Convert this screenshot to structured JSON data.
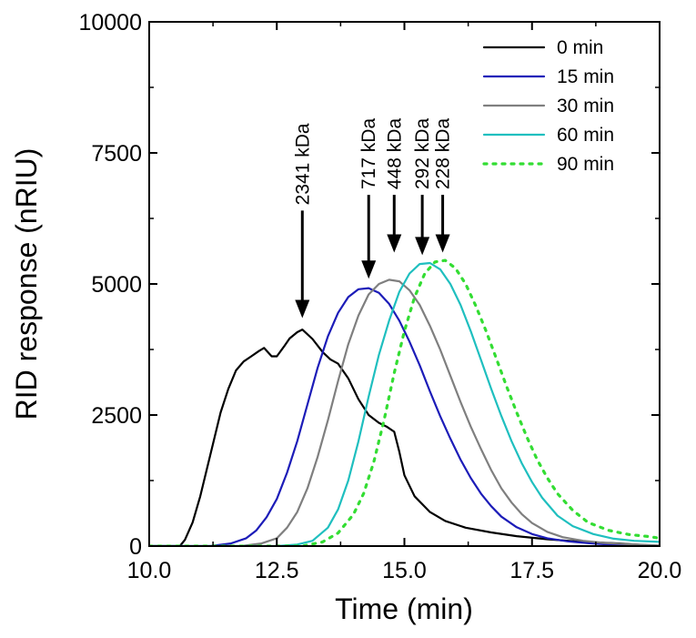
{
  "chart_data": {
    "type": "line",
    "title": "",
    "xlabel": "Time (min)",
    "ylabel": "RID response (nRIU)",
    "xlim": [
      10.0,
      20.0
    ],
    "ylim": [
      0,
      10000
    ],
    "xticks": [
      "10.0",
      "12.5",
      "15.0",
      "17.5",
      "20.0"
    ],
    "yticks": [
      "0",
      "2500",
      "5000",
      "7500",
      "10000"
    ],
    "grid": false,
    "legend_position": "top-right",
    "series": [
      {
        "name": "0 min",
        "color": "#000000",
        "dash": "solid",
        "x": [
          10.0,
          10.6,
          10.7,
          10.85,
          11.0,
          11.2,
          11.4,
          11.55,
          11.7,
          11.85,
          12.0,
          12.15,
          12.25,
          12.4,
          12.5,
          12.65,
          12.75,
          12.9,
          13.0,
          13.2,
          13.4,
          13.55,
          13.7,
          13.9,
          14.1,
          14.3,
          14.5,
          14.65,
          14.8,
          14.9,
          15.0,
          15.2,
          15.5,
          15.8,
          16.2,
          16.7,
          17.2,
          17.8,
          18.5,
          19.2,
          20.0
        ],
        "y": [
          0,
          0,
          120,
          450,
          950,
          1750,
          2550,
          3000,
          3350,
          3520,
          3620,
          3720,
          3780,
          3620,
          3620,
          3820,
          3960,
          4080,
          4130,
          3950,
          3700,
          3560,
          3480,
          3200,
          2800,
          2500,
          2350,
          2280,
          2180,
          1800,
          1350,
          950,
          650,
          480,
          350,
          260,
          190,
          130,
          80,
          50,
          0
        ]
      },
      {
        "name": "15 min",
        "color": "#1c1cb8",
        "dash": "solid",
        "x": [
          10.0,
          11.2,
          11.6,
          11.9,
          12.1,
          12.3,
          12.5,
          12.7,
          12.9,
          13.1,
          13.3,
          13.5,
          13.7,
          13.9,
          14.1,
          14.3,
          14.5,
          14.7,
          14.9,
          15.1,
          15.3,
          15.5,
          15.7,
          15.9,
          16.1,
          16.3,
          16.5,
          16.7,
          16.9,
          17.2,
          17.5,
          17.8,
          18.2,
          18.6,
          19.0,
          19.5,
          20.0
        ],
        "y": [
          0,
          0,
          50,
          150,
          300,
          550,
          900,
          1400,
          2000,
          2700,
          3400,
          4000,
          4450,
          4750,
          4900,
          4920,
          4830,
          4620,
          4300,
          3900,
          3450,
          2950,
          2480,
          2050,
          1650,
          1300,
          1000,
          760,
          560,
          360,
          230,
          150,
          90,
          55,
          30,
          15,
          0
        ]
      },
      {
        "name": "30 min",
        "color": "#7f7f7f",
        "dash": "solid",
        "x": [
          10.0,
          11.8,
          12.2,
          12.5,
          12.7,
          12.9,
          13.1,
          13.3,
          13.5,
          13.7,
          13.9,
          14.1,
          14.3,
          14.5,
          14.7,
          14.9,
          15.1,
          15.3,
          15.5,
          15.7,
          15.9,
          16.1,
          16.3,
          16.5,
          16.7,
          16.9,
          17.1,
          17.3,
          17.5,
          17.8,
          18.1,
          18.5,
          18.9,
          19.3,
          19.7,
          20.0
        ],
        "y": [
          0,
          0,
          50,
          150,
          350,
          650,
          1100,
          1700,
          2400,
          3150,
          3850,
          4400,
          4800,
          5000,
          5080,
          5050,
          4880,
          4600,
          4200,
          3750,
          3250,
          2750,
          2280,
          1850,
          1450,
          1100,
          830,
          610,
          440,
          270,
          170,
          100,
          60,
          40,
          25,
          10
        ]
      },
      {
        "name": "60 min",
        "color": "#1fbfbf",
        "dash": "solid",
        "x": [
          10.0,
          12.5,
          12.9,
          13.2,
          13.5,
          13.7,
          13.9,
          14.1,
          14.3,
          14.5,
          14.7,
          14.9,
          15.1,
          15.3,
          15.5,
          15.7,
          15.9,
          16.1,
          16.3,
          16.5,
          16.7,
          16.9,
          17.1,
          17.3,
          17.5,
          17.7,
          18.0,
          18.3,
          18.7,
          19.1,
          19.5,
          20.0
        ],
        "y": [
          0,
          0,
          30,
          100,
          350,
          700,
          1250,
          2000,
          2850,
          3650,
          4300,
          4850,
          5200,
          5380,
          5400,
          5280,
          5000,
          4600,
          4100,
          3550,
          3000,
          2480,
          2000,
          1580,
          1220,
          920,
          580,
          380,
          230,
          140,
          100,
          80
        ]
      },
      {
        "name": "90 min",
        "color": "#33dd33",
        "dash": "dotted",
        "x": [
          10.0,
          13.0,
          13.4,
          13.7,
          14.0,
          14.2,
          14.4,
          14.6,
          14.8,
          15.0,
          15.2,
          15.4,
          15.6,
          15.8,
          16.0,
          16.2,
          16.4,
          16.6,
          16.8,
          17.0,
          17.2,
          17.4,
          17.6,
          17.8,
          18.0,
          18.3,
          18.6,
          19.0,
          19.4,
          19.8,
          20.0
        ],
        "y": [
          0,
          0,
          80,
          250,
          600,
          1000,
          1600,
          2400,
          3300,
          4100,
          4750,
          5200,
          5420,
          5450,
          5300,
          5000,
          4580,
          4100,
          3580,
          3050,
          2550,
          2080,
          1650,
          1300,
          1000,
          680,
          450,
          300,
          220,
          180,
          150
        ]
      }
    ],
    "annotations": [
      {
        "label": "2341 kDa",
        "x": 13.0,
        "tip_y": 4350,
        "tail_y": 6400
      },
      {
        "label": "717 kDa",
        "x": 14.3,
        "tip_y": 5100,
        "tail_y": 6700
      },
      {
        "label": "448 kDa",
        "x": 14.8,
        "tip_y": 5600,
        "tail_y": 6700
      },
      {
        "label": "292 kDa",
        "x": 15.35,
        "tip_y": 5550,
        "tail_y": 6700
      },
      {
        "label": "228 kDa",
        "x": 15.75,
        "tip_y": 5600,
        "tail_y": 6700
      }
    ]
  }
}
